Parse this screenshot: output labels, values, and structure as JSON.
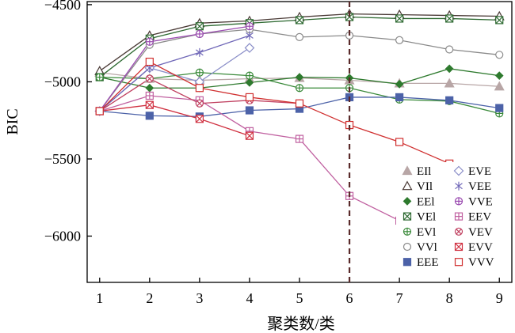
{
  "chart_data": {
    "type": "line",
    "xlabel": "聚类数/类",
    "ylabel": "BIC",
    "x": [
      1,
      2,
      3,
      4,
      5,
      6,
      7,
      8,
      9
    ],
    "xlim": [
      0.75,
      9.25
    ],
    "ylim": [
      -6300,
      -4480
    ],
    "yticks": [
      -6000,
      -5500,
      -5000,
      -4500
    ],
    "ytick_labels": [
      "−6000",
      "−5500",
      "−5000",
      "−4500"
    ],
    "xtick_labels": [
      "1",
      "2",
      "3",
      "4",
      "5",
      "6",
      "7",
      "8",
      "9"
    ],
    "vline_x": 6,
    "legend_position": "bottom-right",
    "series": [
      {
        "name": "EII",
        "legend_label": "EIl",
        "marker": "triangle-filled",
        "color": "#b8a6a6",
        "values": [
          -4940,
          -4980,
          -4990,
          -4980,
          -4975,
          -4990,
          -5010,
          -5010,
          -5030
        ]
      },
      {
        "name": "VII",
        "legend_label": "VIl",
        "marker": "triangle-open",
        "color": "#4a3a36",
        "values": [
          -4930,
          -4700,
          -4620,
          -4605,
          -4580,
          -4560,
          -4565,
          -4570,
          -4575
        ]
      },
      {
        "name": "EEI",
        "legend_label": "EEl",
        "marker": "diamond-filled",
        "color": "#2e7a2e",
        "values": [
          -4970,
          -5040,
          -5040,
          -5005,
          -4970,
          -4975,
          -5015,
          -4915,
          -4960
        ]
      },
      {
        "name": "VEI",
        "legend_label": "VEl",
        "marker": "square-x",
        "color": "#2e6a32",
        "values": [
          -4970,
          -4720,
          -4640,
          -4620,
          -4600,
          -4580,
          -4590,
          -4590,
          -4600
        ]
      },
      {
        "name": "EVI",
        "legend_label": "EVl",
        "marker": "circle-plus",
        "color": "#3a8a3a",
        "values": [
          -4970,
          -4980,
          -4940,
          -4960,
          -5040,
          -5040,
          -5115,
          -5125,
          -5205
        ]
      },
      {
        "name": "VVI",
        "legend_label": "VVl",
        "marker": "circle-open",
        "color": "#8a8a8a",
        "values": [
          -5190,
          -4760,
          -4690,
          -4660,
          -4710,
          -4700,
          -4730,
          -4790,
          -4825
        ]
      },
      {
        "name": "EEE",
        "legend_label": "EEE",
        "marker": "square-filled",
        "color": "#4c62a8",
        "values": [
          -5190,
          -5220,
          -5225,
          -5185,
          -5175,
          -5100,
          -5100,
          -5120,
          -5170
        ]
      },
      {
        "name": "EVE",
        "legend_label": "EVE",
        "marker": "diamond-open",
        "color": "#8a8ec8",
        "values": [
          -5190,
          -4910,
          -5000,
          -4780,
          null,
          null,
          null,
          null,
          null
        ]
      },
      {
        "name": "VEE",
        "legend_label": "VEE",
        "marker": "asterisk",
        "color": "#7068b8",
        "values": [
          -5190,
          -4910,
          -4810,
          -4700,
          null,
          null,
          null,
          null,
          null
        ]
      },
      {
        "name": "VVE",
        "legend_label": "VVE",
        "marker": "circle-plus",
        "color": "#9a4ab0",
        "values": [
          -5190,
          -4740,
          -4690,
          -4640,
          null,
          null,
          null,
          null,
          null
        ]
      },
      {
        "name": "EEV",
        "legend_label": "EEV",
        "marker": "square-plus",
        "color": "#c060a0",
        "values": [
          -5190,
          -5090,
          -5120,
          -5320,
          -5370,
          -5740,
          -5900,
          null,
          null
        ]
      },
      {
        "name": "VEV",
        "legend_label": "VEV",
        "marker": "circle-x",
        "color": "#c04060",
        "values": [
          -5190,
          -4980,
          -5140,
          -5120,
          -5140,
          null,
          null,
          null,
          null
        ]
      },
      {
        "name": "EVV",
        "legend_label": "EVV",
        "marker": "square-x",
        "color": "#d03040",
        "values": [
          -5190,
          -5150,
          -5240,
          -5350,
          null,
          null,
          null,
          null,
          null
        ]
      },
      {
        "name": "VVV",
        "legend_label": "VVV",
        "marker": "square-open",
        "color": "#d03030",
        "values": [
          -5190,
          -4870,
          -5040,
          -5100,
          -5140,
          -5280,
          -5390,
          -5530,
          null
        ]
      }
    ]
  }
}
